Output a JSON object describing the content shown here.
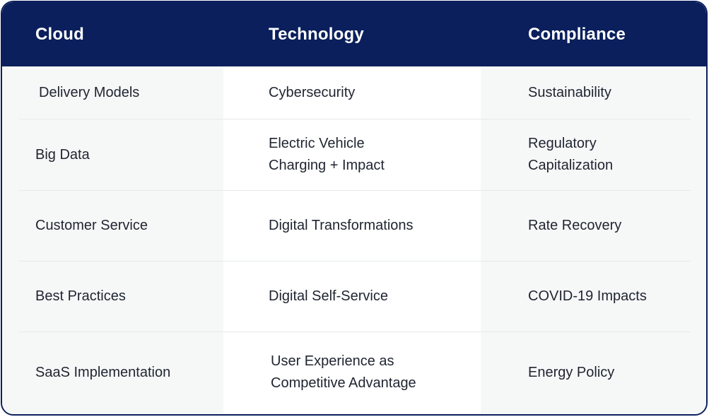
{
  "table": {
    "headers": [
      "Cloud",
      "Technology",
      "Compliance"
    ],
    "rows": [
      {
        "cloud": "Delivery Models",
        "technology": [
          "Cybersecurity"
        ],
        "compliance": [
          "Sustainability"
        ]
      },
      {
        "cloud": "Big Data",
        "technology": [
          "Electric Vehicle",
          "Charging + Impact"
        ],
        "compliance": [
          "Regulatory",
          "Capitalization"
        ]
      },
      {
        "cloud": "Customer Service",
        "technology": [
          "Digital Transformations"
        ],
        "compliance": [
          "Rate Recovery"
        ]
      },
      {
        "cloud": "Best Practices",
        "technology": [
          "Digital Self-Service"
        ],
        "compliance": [
          "COVID-19 Impacts"
        ]
      },
      {
        "cloud": "SaaS Implementation",
        "technology": [
          "User Experience as",
          "Competitive Advantage"
        ],
        "compliance": [
          "Energy Policy"
        ]
      }
    ]
  },
  "colors": {
    "header_bg": "#0a1f5c",
    "header_text": "#ffffff",
    "border": "#0b1f5c",
    "shaded_column": "#f6f8f8",
    "body_text": "#1f2430"
  }
}
